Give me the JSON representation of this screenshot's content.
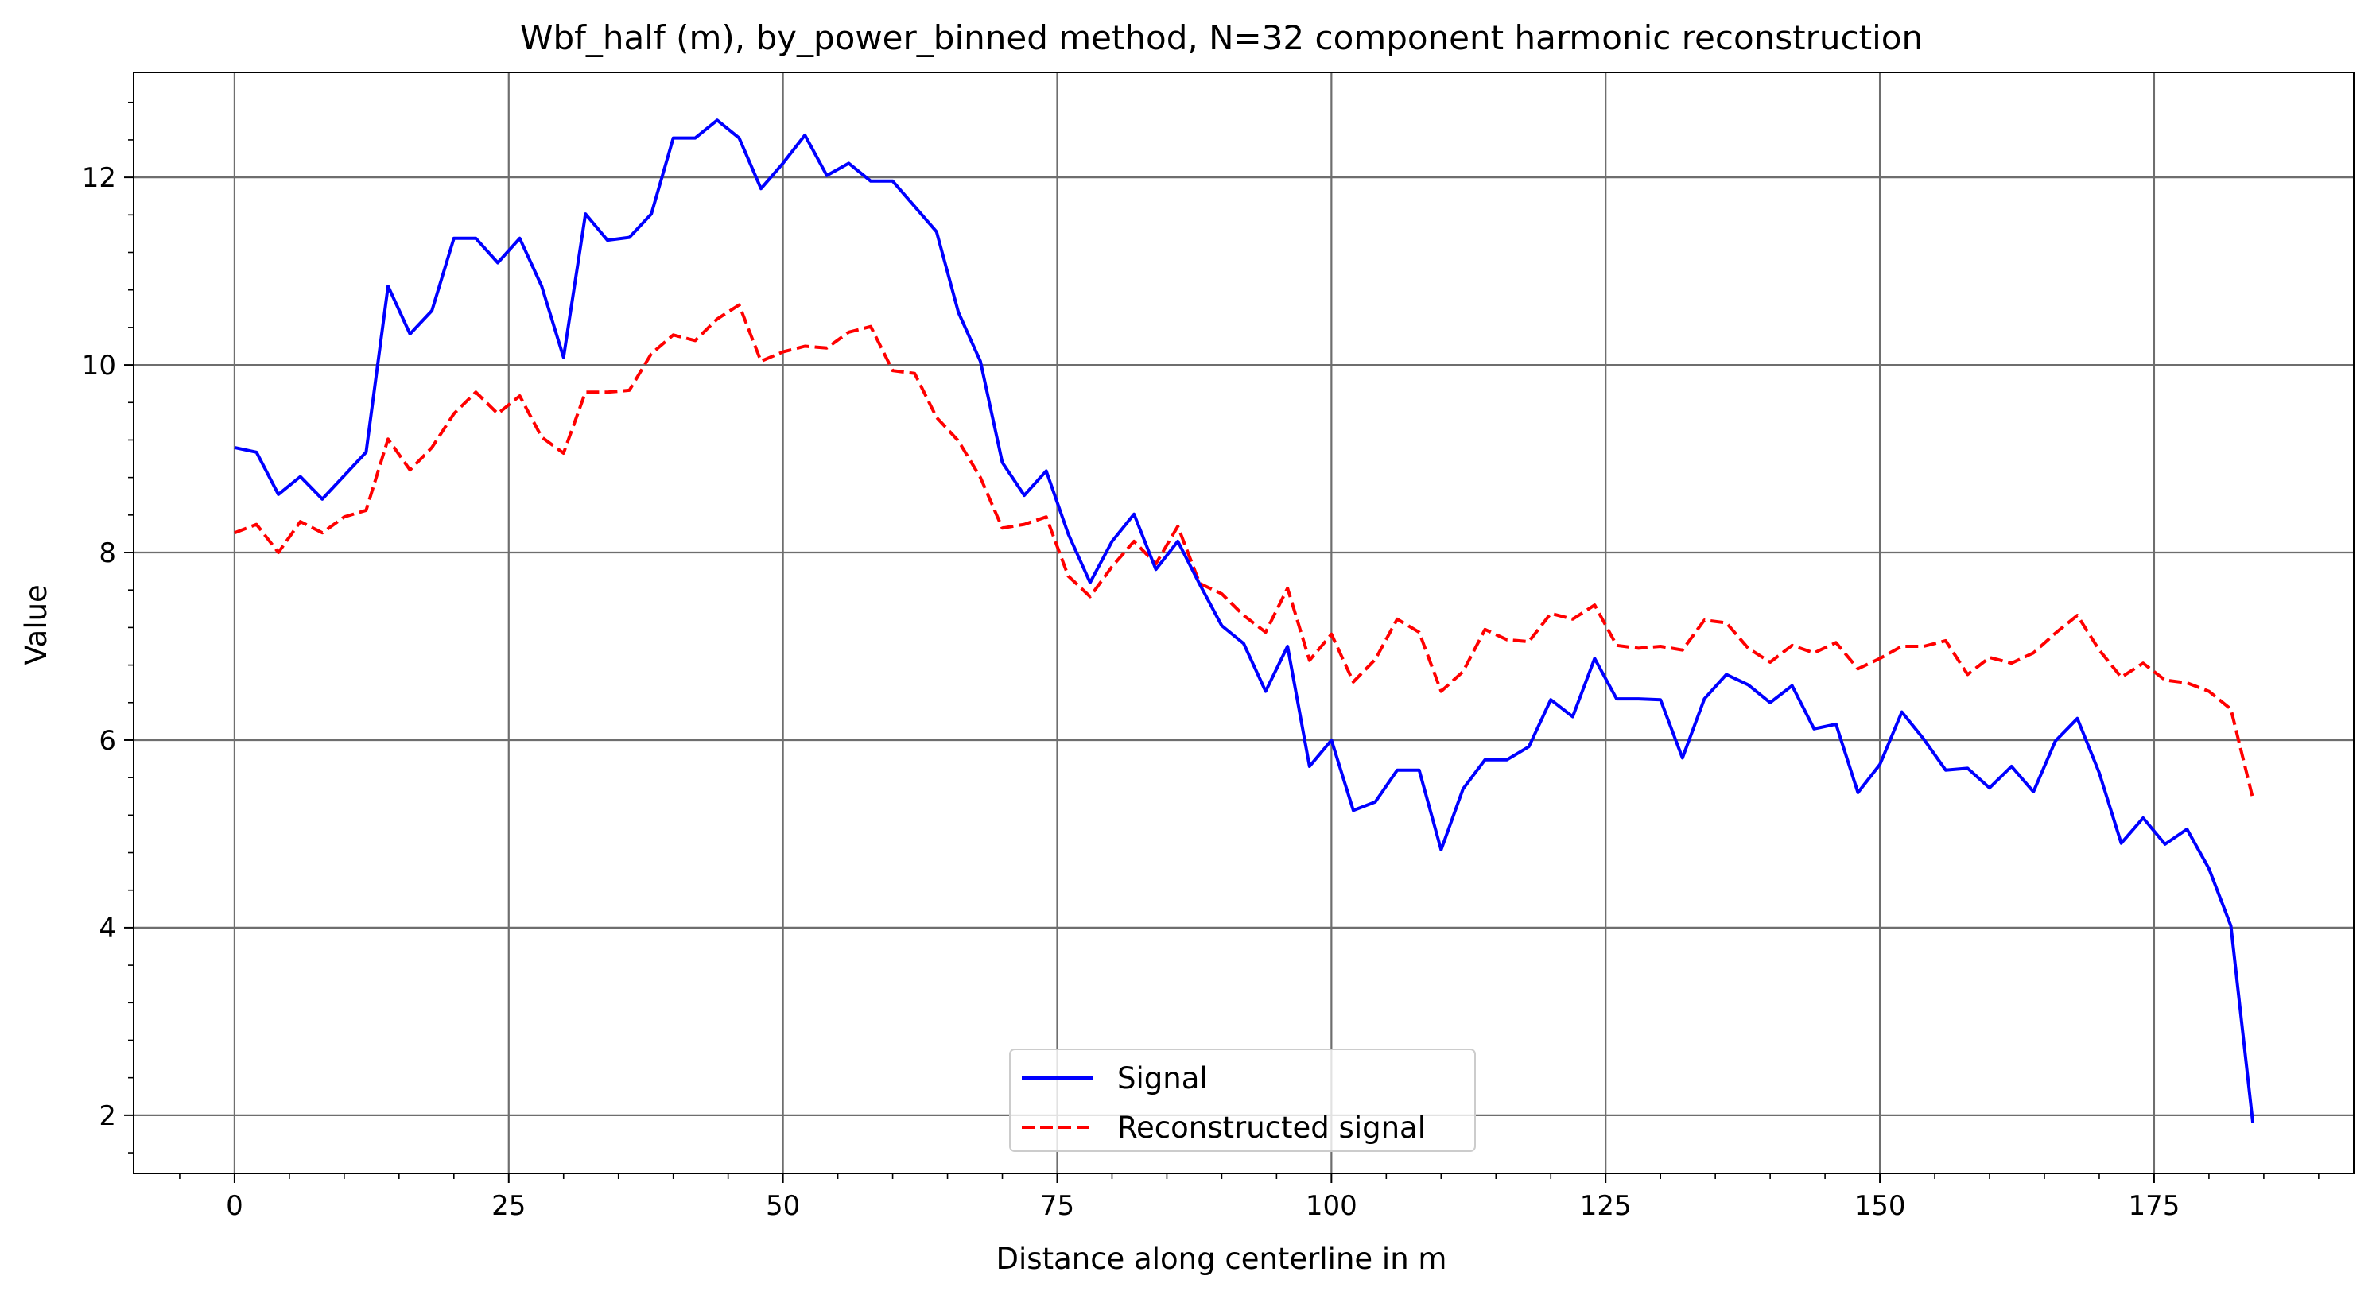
{
  "chart_data": {
    "type": "line",
    "title": "Wbf_half (m), by_power_binned method, N=32 component harmonic reconstruction",
    "xlabel": "Distance along centerline in m",
    "ylabel": "Value",
    "xlim": [
      -9.2,
      193.2
    ],
    "ylim": [
      1.38,
      13.12
    ],
    "xticks": [
      0,
      25,
      50,
      75,
      100,
      125,
      150,
      175
    ],
    "yticks": [
      2,
      4,
      6,
      8,
      10,
      12
    ],
    "x_minor_step": 5,
    "y_minor_step": 0.4,
    "grid": true,
    "legend_position": "lower center",
    "x": [
      0,
      2,
      4,
      6,
      8,
      10,
      12,
      14,
      16,
      18,
      20,
      22,
      24,
      26,
      28,
      30,
      32,
      34,
      36,
      38,
      40,
      42,
      44,
      46,
      48,
      50,
      52,
      54,
      56,
      58,
      60,
      62,
      64,
      66,
      68,
      70,
      72,
      74,
      76,
      78,
      80,
      82,
      84,
      86,
      88,
      90,
      92,
      94,
      96,
      98,
      100,
      102,
      104,
      106,
      108,
      110,
      112,
      114,
      116,
      118,
      120,
      122,
      124,
      126,
      128,
      130,
      132,
      134,
      136,
      138,
      140,
      142,
      144,
      146,
      148,
      150,
      152,
      154,
      156,
      158,
      160,
      162,
      164,
      166,
      168,
      170,
      172,
      174,
      176,
      178,
      180,
      182,
      184
    ],
    "series": [
      {
        "name": "Signal",
        "color": "#0000ff",
        "dash": "solid",
        "values": [
          9.12,
          9.07,
          8.62,
          8.81,
          8.57,
          8.82,
          9.07,
          10.84,
          10.33,
          10.58,
          11.35,
          11.35,
          11.09,
          11.35,
          10.84,
          10.08,
          11.61,
          11.33,
          11.36,
          11.61,
          12.42,
          12.42,
          12.61,
          12.42,
          11.88,
          12.15,
          12.45,
          12.02,
          12.15,
          11.96,
          11.96,
          11.69,
          11.42,
          10.56,
          10.04,
          8.96,
          8.61,
          8.87,
          8.2,
          7.68,
          8.12,
          8.41,
          7.82,
          8.12,
          7.66,
          7.22,
          7.03,
          6.52,
          7.0,
          5.72,
          6.0,
          5.25,
          5.34,
          5.68,
          5.68,
          4.83,
          5.48,
          5.79,
          5.79,
          5.93,
          6.43,
          6.25,
          6.87,
          6.44,
          6.44,
          6.43,
          5.81,
          6.44,
          6.7,
          6.59,
          6.4,
          6.58,
          6.12,
          6.17,
          5.44,
          5.74,
          6.3,
          6.01,
          5.68,
          5.7,
          5.49,
          5.72,
          5.45,
          5.99,
          6.23,
          5.65,
          4.9,
          5.17,
          4.89,
          5.05,
          4.63,
          4.02,
          1.92
        ]
      },
      {
        "name": "Reconstructed signal",
        "color": "#ff0000",
        "dash": "dashed",
        "values": [
          8.21,
          8.3,
          8.0,
          8.33,
          8.21,
          8.38,
          8.45,
          9.21,
          8.88,
          9.12,
          9.48,
          9.71,
          9.48,
          9.67,
          9.23,
          9.06,
          9.71,
          9.71,
          9.73,
          10.12,
          10.32,
          10.26,
          10.49,
          10.64,
          10.04,
          10.14,
          10.2,
          10.18,
          10.35,
          10.41,
          9.94,
          9.91,
          9.44,
          9.19,
          8.8,
          8.26,
          8.3,
          8.38,
          7.75,
          7.53,
          7.85,
          8.12,
          7.88,
          8.28,
          7.67,
          7.56,
          7.33,
          7.15,
          7.62,
          6.85,
          7.13,
          6.62,
          6.86,
          7.29,
          7.15,
          6.52,
          6.73,
          7.18,
          7.07,
          7.05,
          7.35,
          7.29,
          7.44,
          7.01,
          6.98,
          7.0,
          6.96,
          7.28,
          7.25,
          6.98,
          6.83,
          7.01,
          6.93,
          7.04,
          6.76,
          6.87,
          7.0,
          7.0,
          7.06,
          6.7,
          6.88,
          6.82,
          6.93,
          7.14,
          7.33,
          6.96,
          6.67,
          6.82,
          6.64,
          6.61,
          6.52,
          6.33,
          5.38
        ]
      }
    ]
  }
}
